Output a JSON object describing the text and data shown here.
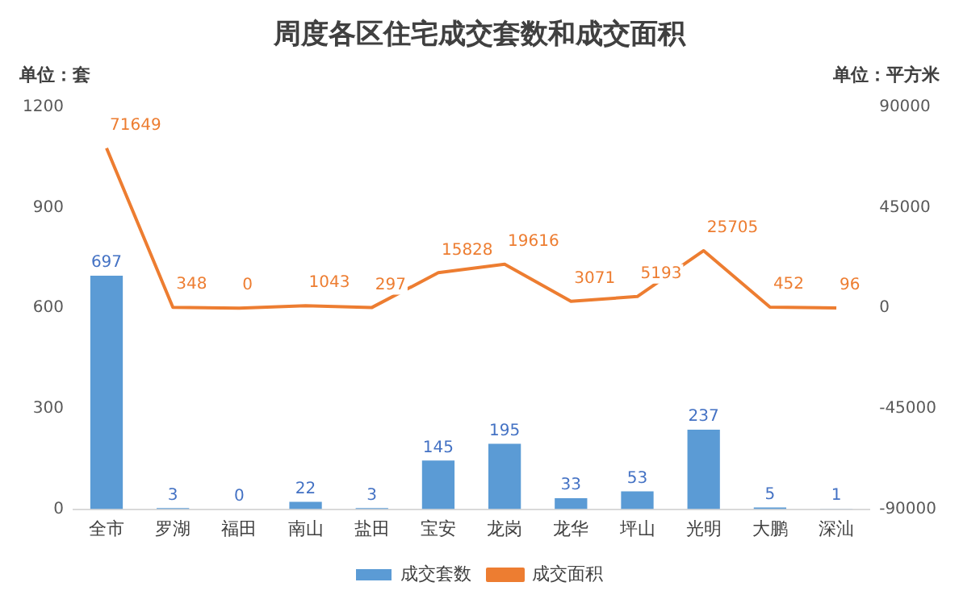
{
  "chart_data": {
    "type": "bar",
    "title": "周度各区住宅成交套数和成交面积",
    "ylabel": "单位：套",
    "y2label": "单位：平方米",
    "categories": [
      "全市",
      "罗湖",
      "福田",
      "南山",
      "盐田",
      "宝安",
      "龙岗",
      "龙华",
      "坪山",
      "光明",
      "大鹏",
      "深汕"
    ],
    "series": [
      {
        "name": "成交套数",
        "color": "#5b9bd5",
        "values": [
          697,
          3,
          0,
          22,
          3,
          145,
          195,
          33,
          53,
          237,
          5,
          1
        ]
      },
      {
        "name": "成交面积",
        "type": "line",
        "axis": "y2",
        "color": "#ed7d31",
        "marker": "none",
        "values": [
          71649,
          348,
          0,
          1043,
          297,
          15828,
          19616,
          3071,
          5193,
          25705,
          452,
          96
        ]
      }
    ],
    "ylim": [
      0,
      1200
    ],
    "yticks": [
      0,
      300,
      600,
      900,
      1200
    ],
    "y2lim": [
      -90000,
      90000
    ],
    "y2ticks": [
      -90000,
      -45000,
      0,
      45000,
      90000
    ],
    "grid": false,
    "legend": "bottom",
    "data_labels": true
  }
}
